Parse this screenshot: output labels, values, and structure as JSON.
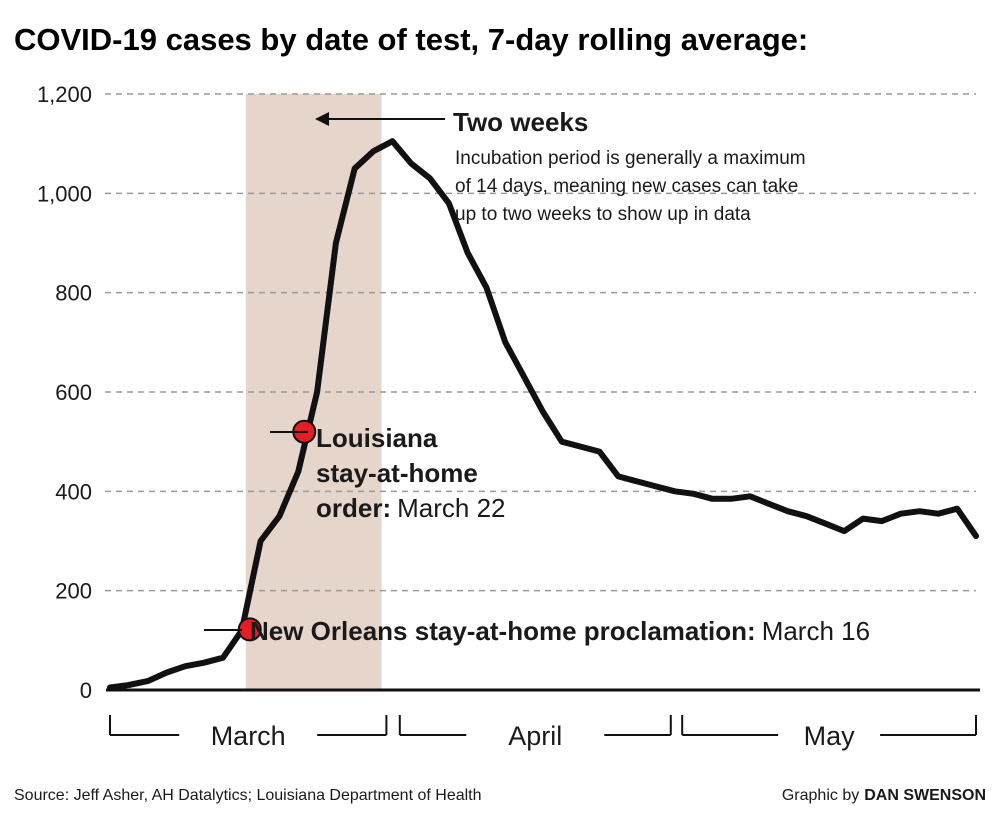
{
  "chart_data": {
    "type": "line",
    "title": "COVID-19 cases by date of test, 7-day rolling average:",
    "ylim": [
      0,
      1200
    ],
    "yticks": [
      "0",
      "200",
      "400",
      "600",
      "800",
      "1,000",
      "1,200"
    ],
    "ytick_values": [
      0,
      200,
      400,
      600,
      800,
      1000,
      1200
    ],
    "grid": true,
    "months": [
      "March",
      "April",
      "May"
    ],
    "series": [
      {
        "x_dates": [
          "Mar 1",
          "Mar 3",
          "Mar 5",
          "Mar 7",
          "Mar 9",
          "Mar 11",
          "Mar 13",
          "Mar 15",
          "Mar 17",
          "Mar 19",
          "Mar 21",
          "Mar 23",
          "Mar 25",
          "Mar 27",
          "Mar 29",
          "Mar 31",
          "Apr 2",
          "Apr 4",
          "Apr 6",
          "Apr 8",
          "Apr 10",
          "Apr 12",
          "Apr 14",
          "Apr 16",
          "Apr 18",
          "Apr 20",
          "Apr 22",
          "Apr 24",
          "Apr 26",
          "Apr 28",
          "Apr 30",
          "May 2",
          "May 4",
          "May 6",
          "May 8",
          "May 10",
          "May 12",
          "May 14",
          "May 16",
          "May 18",
          "May 20",
          "May 22",
          "May 24",
          "May 26",
          "May 28",
          "May 30",
          "Jun 1"
        ],
        "values": [
          5,
          10,
          18,
          35,
          48,
          55,
          65,
          120,
          300,
          350,
          440,
          600,
          900,
          1050,
          1085,
          1105,
          1060,
          1030,
          980,
          880,
          810,
          700,
          630,
          560,
          500,
          490,
          480,
          430,
          420,
          410,
          400,
          395,
          385,
          385,
          390,
          375,
          360,
          350,
          335,
          320,
          345,
          340,
          355,
          360,
          355,
          365,
          310
        ]
      }
    ],
    "shaded_period": {
      "start": "Mar 15",
      "end": "Mar 29",
      "color": "#e6d5cb"
    },
    "line_color": "#111111",
    "marker_color": "#e51d24",
    "markers": [
      {
        "date": "Mar 15",
        "value": 122,
        "label_bold": "New Orleans stay-at-home proclamation:",
        "label_regular": "March 16"
      },
      {
        "date": "Mar 21",
        "value": 520,
        "label_bold_lines": [
          "Louisiana",
          "stay-at-home",
          "order:"
        ],
        "label_regular": "March 22"
      }
    ],
    "annotation": {
      "heading": "Two weeks",
      "body_lines": [
        "Incubation period is generally a maximum",
        "of 14 days, meaning new cases can take",
        "up to two weeks to show up in data"
      ]
    }
  },
  "footer": {
    "source": "Source: Jeff Asher, AH Datalytics; Louisiana Department of Health",
    "credit_prefix": "Graphic by",
    "credit_name": "DAN SWENSON"
  }
}
